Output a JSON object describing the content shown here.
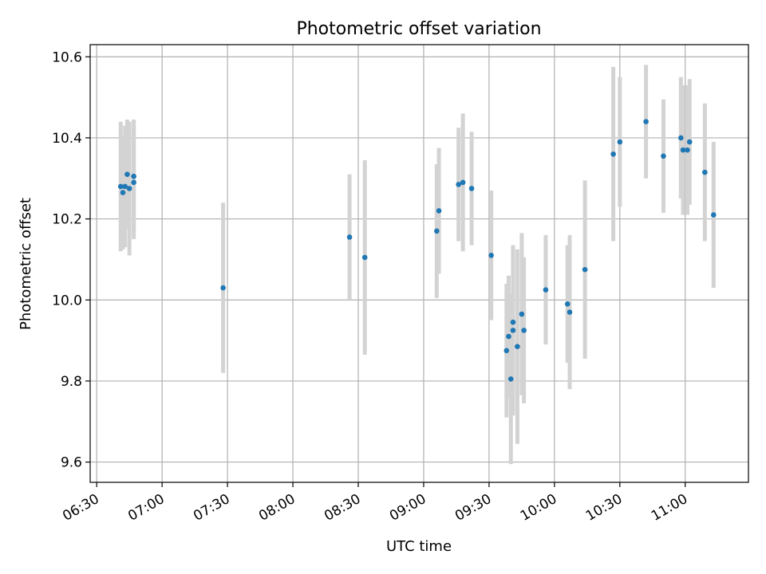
{
  "chart_data": {
    "type": "scatter",
    "title": "Photometric offset variation",
    "xlabel": "UTC time",
    "ylabel": "Photometric offset",
    "x_tick_labels": [
      "06:30",
      "07:00",
      "07:30",
      "08:00",
      "08:30",
      "09:00",
      "09:30",
      "10:00",
      "10:30",
      "11:00"
    ],
    "y_tick_labels": [
      "9.6",
      "9.8",
      "10.0",
      "10.2",
      "10.4",
      "10.6"
    ],
    "xlim": [
      "06:27",
      "11:29"
    ],
    "ylim": [
      9.55,
      10.63
    ],
    "grid": true,
    "colors": {
      "point": "#1f77b4",
      "errorbar": "#d3d3d3",
      "grid": "#b0b0b0"
    },
    "points": [
      {
        "x": "06:41",
        "y": 10.28,
        "err": 0.16
      },
      {
        "x": "06:42",
        "y": 10.265,
        "err": 0.14
      },
      {
        "x": "06:43",
        "y": 10.28,
        "err": 0.15
      },
      {
        "x": "06:44",
        "y": 10.31,
        "err": 0.135
      },
      {
        "x": "06:45",
        "y": 10.275,
        "err": 0.165
      },
      {
        "x": "06:47",
        "y": 10.305,
        "err": 0.14
      },
      {
        "x": "06:47",
        "y": 10.29,
        "err": 0.14
      },
      {
        "x": "07:28",
        "y": 10.03,
        "err": 0.21
      },
      {
        "x": "08:26",
        "y": 10.155,
        "err": 0.155
      },
      {
        "x": "08:33",
        "y": 10.105,
        "err": 0.24
      },
      {
        "x": "09:06",
        "y": 10.17,
        "err": 0.165
      },
      {
        "x": "09:07",
        "y": 10.22,
        "err": 0.155
      },
      {
        "x": "09:16",
        "y": 10.285,
        "err": 0.14
      },
      {
        "x": "09:18",
        "y": 10.29,
        "err": 0.17
      },
      {
        "x": "09:22",
        "y": 10.275,
        "err": 0.14
      },
      {
        "x": "09:31",
        "y": 10.11,
        "err": 0.16
      },
      {
        "x": "09:38",
        "y": 9.875,
        "err": 0.165
      },
      {
        "x": "09:39",
        "y": 9.91,
        "err": 0.15
      },
      {
        "x": "09:40",
        "y": 9.805,
        "err": 0.21
      },
      {
        "x": "09:41",
        "y": 9.925,
        "err": 0.21
      },
      {
        "x": "09:41",
        "y": 9.945,
        "err": 0.19
      },
      {
        "x": "09:43",
        "y": 9.885,
        "err": 0.24
      },
      {
        "x": "09:45",
        "y": 9.965,
        "err": 0.2
      },
      {
        "x": "09:46",
        "y": 9.925,
        "err": 0.18
      },
      {
        "x": "09:56",
        "y": 10.025,
        "err": 0.135
      },
      {
        "x": "10:06",
        "y": 9.99,
        "err": 0.145
      },
      {
        "x": "10:07",
        "y": 9.97,
        "err": 0.19
      },
      {
        "x": "10:14",
        "y": 10.075,
        "err": 0.22
      },
      {
        "x": "10:27",
        "y": 10.36,
        "err": 0.215
      },
      {
        "x": "10:30",
        "y": 10.39,
        "err": 0.16
      },
      {
        "x": "10:42",
        "y": 10.44,
        "err": 0.14
      },
      {
        "x": "10:50",
        "y": 10.355,
        "err": 0.14
      },
      {
        "x": "10:58",
        "y": 10.4,
        "err": 0.15
      },
      {
        "x": "10:59",
        "y": 10.37,
        "err": 0.16
      },
      {
        "x": "11:01",
        "y": 10.37,
        "err": 0.16
      },
      {
        "x": "11:02",
        "y": 10.39,
        "err": 0.155
      },
      {
        "x": "11:09",
        "y": 10.315,
        "err": 0.17
      },
      {
        "x": "11:13",
        "y": 10.21,
        "err": 0.18
      }
    ]
  }
}
